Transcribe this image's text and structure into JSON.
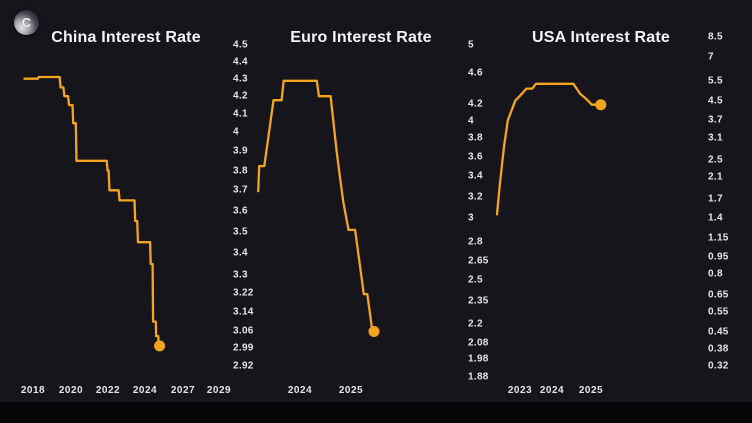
{
  "logo": {
    "letter": "C"
  },
  "colors": {
    "background": "#15151b",
    "bottom_bar": "#050507",
    "line": "#F3A51F",
    "title_text": "#F5F5F7",
    "tick_text": "#E4E4E8"
  },
  "chart_data": [
    {
      "id": "china",
      "type": "line",
      "title": "China Interest Rate",
      "xlabel": "",
      "ylabel": "",
      "yscale": "log",
      "ylim": [
        2.92,
        4.5
      ],
      "grid": false,
      "legend": "none",
      "y_ticks": [
        "4.5",
        "4.4",
        "4.3",
        "4.2",
        "4.1",
        "4",
        "3.9",
        "3.8",
        "3.7",
        "3.6",
        "3.5",
        "3.4",
        "3.3",
        "3.22",
        "3.14",
        "3.06",
        "2.99",
        "2.92"
      ],
      "x_ticks": [
        "2018",
        "2020",
        "2022",
        "2024",
        "2027",
        "2029"
      ],
      "end_marker": true,
      "series": [
        {
          "name": "China Interest Rate",
          "points": [
            [
              2017.55,
              4.3
            ],
            [
              2018.25,
              4.3
            ],
            [
              2018.3,
              4.31
            ],
            [
              2019.4,
              4.31
            ],
            [
              2019.45,
              4.25
            ],
            [
              2019.6,
              4.25
            ],
            [
              2019.65,
              4.2
            ],
            [
              2019.85,
              4.2
            ],
            [
              2019.9,
              4.15
            ],
            [
              2020.08,
              4.15
            ],
            [
              2020.12,
              4.05
            ],
            [
              2020.26,
              4.05
            ],
            [
              2020.3,
              3.85
            ],
            [
              2021.93,
              3.85
            ],
            [
              2021.98,
              3.8
            ],
            [
              2022.03,
              3.8
            ],
            [
              2022.08,
              3.7
            ],
            [
              2022.58,
              3.7
            ],
            [
              2022.62,
              3.65
            ],
            [
              2023.43,
              3.65
            ],
            [
              2023.47,
              3.55
            ],
            [
              2023.58,
              3.55
            ],
            [
              2023.62,
              3.45
            ],
            [
              2024.4,
              3.45
            ],
            [
              2024.45,
              3.35
            ],
            [
              2024.6,
              3.35
            ],
            [
              2024.64,
              3.1
            ],
            [
              2024.85,
              3.1
            ],
            [
              2024.88,
              3.04
            ],
            [
              2025.05,
              3.04
            ],
            [
              2025.08,
              3.0
            ],
            [
              2025.15,
              3.0
            ]
          ]
        }
      ]
    },
    {
      "id": "euro",
      "type": "line",
      "title": "Euro Interest Rate",
      "xlabel": "",
      "ylabel": "",
      "yscale": "log",
      "ylim": [
        1.88,
        5
      ],
      "grid": false,
      "legend": "none",
      "y_ticks": [
        "5",
        "4.6",
        "4.2",
        "4",
        "3.8",
        "3.6",
        "3.4",
        "3.2",
        "3",
        "2.8",
        "2.65",
        "2.5",
        "2.35",
        "2.2",
        "2.08",
        "1.98",
        "1.88"
      ],
      "x_ticks": [
        "2024",
        "2025"
      ],
      "end_marker": true,
      "series": [
        {
          "name": "Euro Interest Rate",
          "points": [
            [
              2023.18,
              3.25
            ],
            [
              2023.2,
              3.5
            ],
            [
              2023.3,
              3.5
            ],
            [
              2023.48,
              4.25
            ],
            [
              2023.64,
              4.25
            ],
            [
              2023.68,
              4.5
            ],
            [
              2024.33,
              4.5
            ],
            [
              2024.37,
              4.3
            ],
            [
              2024.6,
              4.3
            ],
            [
              2024.72,
              3.65
            ],
            [
              2024.78,
              3.4
            ],
            [
              2024.85,
              3.15
            ],
            [
              2024.95,
              2.9
            ],
            [
              2025.08,
              2.9
            ],
            [
              2025.25,
              2.4
            ],
            [
              2025.32,
              2.4
            ],
            [
              2025.42,
              2.15
            ],
            [
              2025.45,
              2.15
            ]
          ]
        }
      ]
    },
    {
      "id": "usa",
      "type": "line",
      "title": "USA Interest Rate",
      "xlabel": "",
      "ylabel": "",
      "yscale": "log",
      "ylim": [
        0.32,
        8.5
      ],
      "grid": false,
      "legend": "none",
      "y_ticks": [
        "8.5",
        "7",
        "5.5",
        "4.5",
        "3.7",
        "3.1",
        "2.5",
        "2.1",
        "1.7",
        "1.4",
        "1.15",
        "0.95",
        "0.8",
        "0.65",
        "0.55",
        "0.45",
        "0.38",
        "0.32"
      ],
      "x_ticks": [
        "2023",
        "2024",
        "2025"
      ],
      "end_marker": true,
      "series": [
        {
          "name": "USA Interest Rate",
          "points": [
            [
              2022.28,
              1.45
            ],
            [
              2022.37,
              1.95
            ],
            [
              2022.5,
              2.85
            ],
            [
              2022.62,
              3.7
            ],
            [
              2022.85,
              4.5
            ],
            [
              2023.1,
              4.9
            ],
            [
              2023.2,
              5.08
            ],
            [
              2023.38,
              5.08
            ],
            [
              2023.5,
              5.33
            ],
            [
              2024.55,
              5.33
            ],
            [
              2024.72,
              4.83
            ],
            [
              2024.88,
              4.58
            ],
            [
              2025.02,
              4.33
            ],
            [
              2025.25,
              4.33
            ]
          ]
        }
      ]
    }
  ]
}
